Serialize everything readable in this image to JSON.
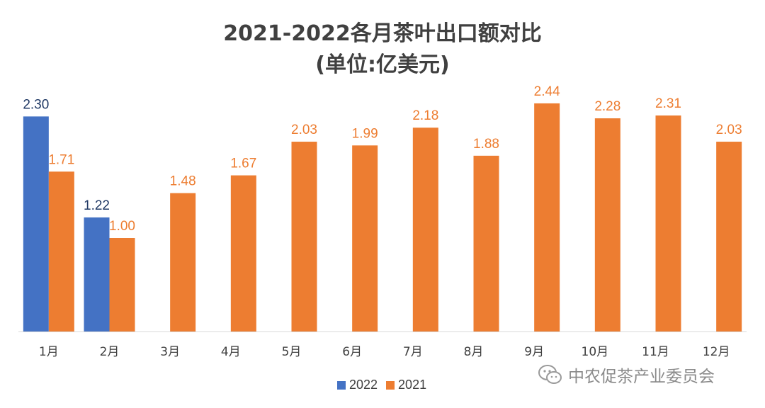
{
  "chart_data": {
    "type": "bar",
    "title": "2021-2022各月茶叶出口额对比",
    "subtitle": "(单位:亿美元)",
    "categories": [
      "1月",
      "2月",
      "3月",
      "4月",
      "5月",
      "6月",
      "7月",
      "8月",
      "9月",
      "10月",
      "11月",
      "12月"
    ],
    "series": [
      {
        "name": "2022",
        "color": "#4472C4",
        "values": [
          2.3,
          1.22,
          null,
          null,
          null,
          null,
          null,
          null,
          null,
          null,
          null,
          null
        ]
      },
      {
        "name": "2021",
        "color": "#ED7D31",
        "values": [
          1.71,
          1.0,
          1.48,
          1.67,
          2.03,
          1.99,
          2.18,
          1.88,
          2.44,
          2.28,
          2.31,
          2.03
        ]
      }
    ],
    "ylim": [
      0,
      2.5
    ],
    "grid": false,
    "legend": "bottom"
  },
  "watermark": {
    "text": "中农促茶产业委员会",
    "icon": "wechat-icon"
  }
}
